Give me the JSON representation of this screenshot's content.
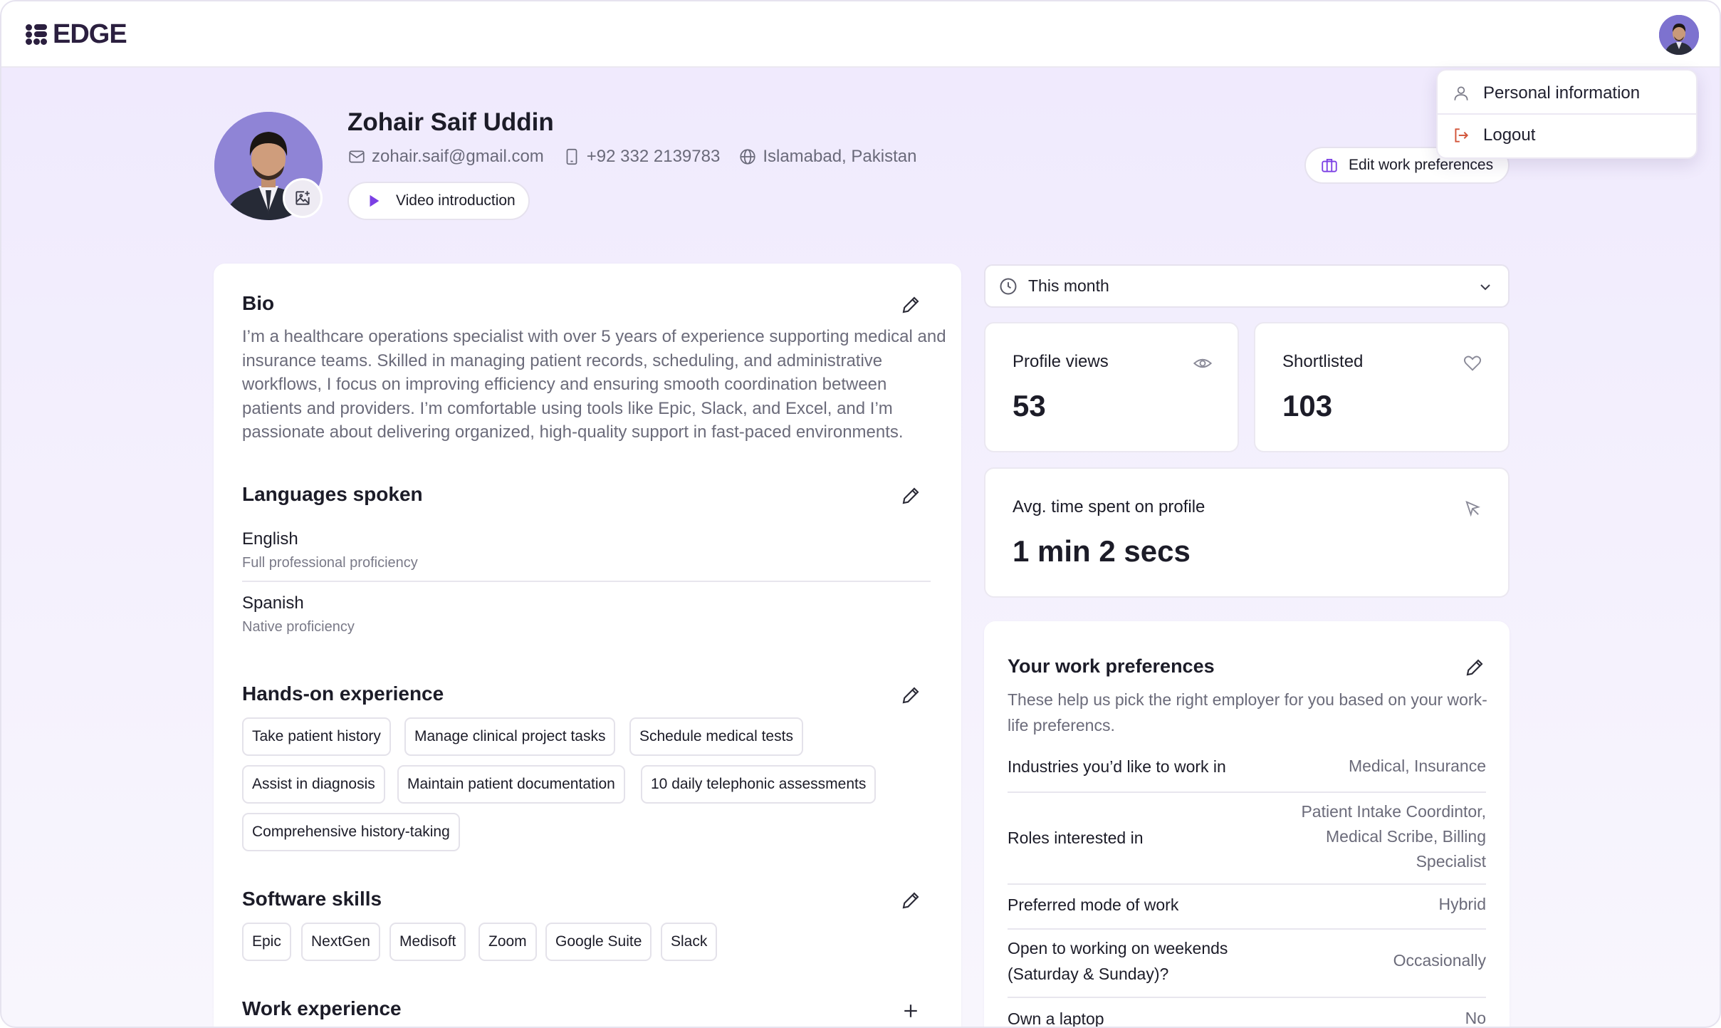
{
  "app": {
    "logo_text": "EDGE",
    "brand_color": "#2b1f3f",
    "accent": "#7b3fe4"
  },
  "user_menu": {
    "items": [
      {
        "label": "Personal information",
        "icon": "user-icon"
      },
      {
        "label": "Logout",
        "icon": "logout-icon"
      }
    ]
  },
  "profile": {
    "name": "Zohair Saif Uddin",
    "email": "zohair.saif@gmail.com",
    "phone": "+92 332 2139783",
    "location": "Islamabad, Pakistan",
    "video_label": "Video introduction",
    "edit_prefs_label": "Edit work preferences"
  },
  "bio": {
    "title": "Bio",
    "text": "I’m a healthcare operations specialist with over 5 years of experience supporting medical and insurance teams. Skilled in managing patient records, scheduling, and administrative workflows, I focus on improving efficiency and ensuring smooth coordination between patients and providers. I’m comfortable using tools like Epic, Slack, and Excel, and I’m passionate about delivering organized, high-quality support in fast-paced environments."
  },
  "languages": {
    "title": "Languages spoken",
    "items": [
      {
        "name": "English",
        "level": "Full professional proficiency"
      },
      {
        "name": "Spanish",
        "level": "Native proficiency"
      }
    ]
  },
  "experience": {
    "title": "Hands-on experience",
    "chips": [
      "Take patient history",
      "Manage clinical project tasks",
      "Schedule medical tests",
      "Assist in diagnosis",
      "Maintain patient documentation",
      "10 daily telephonic assessments",
      "Comprehensive history-taking"
    ]
  },
  "software": {
    "title": "Software skills",
    "chips": [
      "Epic",
      "NextGen",
      "Medisoft",
      "Zoom",
      "Google Suite",
      "Slack"
    ]
  },
  "work_experience": {
    "title": "Work experience"
  },
  "stats": {
    "period": "This month",
    "profile_views": {
      "label": "Profile views",
      "value": "53"
    },
    "shortlisted": {
      "label": "Shortlisted",
      "value": "103"
    },
    "avg_time": {
      "label": "Avg. time spent on profile",
      "value": "1 min 2 secs"
    }
  },
  "preferences": {
    "title": "Your work preferences",
    "subtitle": "These help us pick the right employer for you based on your work-life preferencs.",
    "rows": [
      {
        "label": "Industries you’d like to work in",
        "value": "Medical, Insurance"
      },
      {
        "label": "Roles interested in",
        "value": "Patient Intake Coordintor, Medical Scribe, Billing Specialist"
      },
      {
        "label": "Preferred mode of work",
        "value": "Hybrid"
      },
      {
        "label": "Open to working on weekends (Saturday & Sunday)?",
        "value": "Occasionally"
      },
      {
        "label": "Own a laptop",
        "value": "No"
      }
    ]
  }
}
